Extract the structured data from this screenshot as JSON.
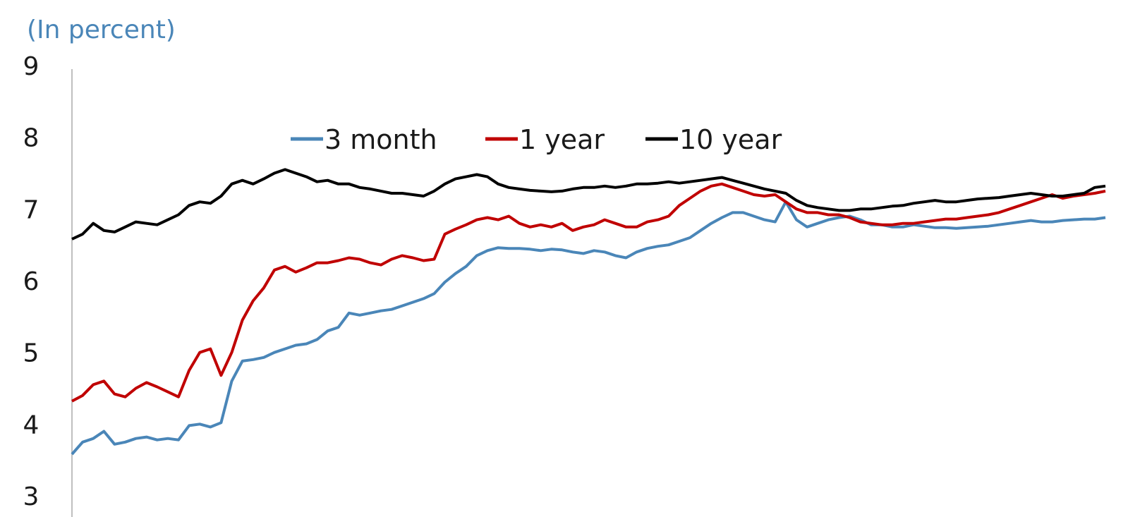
{
  "chart_data": {
    "type": "line",
    "unit_label": "(In percent)",
    "ylim": [
      3,
      9
    ],
    "y_ticks": [
      "9",
      "8",
      "7",
      "6",
      "5",
      "4",
      "3"
    ],
    "grid": false,
    "legend_position": "top-center",
    "x": [
      0,
      1,
      2,
      3,
      4,
      5,
      6,
      7,
      8,
      9,
      10,
      11,
      12,
      13,
      14,
      15,
      16,
      17,
      18,
      19,
      20,
      21,
      22,
      23,
      24,
      25,
      26,
      27,
      28,
      29,
      30,
      31,
      32,
      33,
      34,
      35,
      36,
      37,
      38,
      39,
      40,
      41,
      42,
      43,
      44,
      45,
      46,
      47,
      48,
      49,
      50,
      51,
      52,
      53,
      54,
      55,
      56,
      57,
      58,
      59,
      60,
      61,
      62,
      63,
      64,
      65,
      66,
      67,
      68,
      69,
      70,
      71,
      72,
      73,
      74,
      75,
      76,
      77,
      78,
      79,
      80,
      81,
      82,
      83,
      84,
      85,
      86,
      87,
      88,
      89,
      90,
      91,
      92,
      93,
      94,
      95,
      96,
      97
    ],
    "series": [
      {
        "name": "3 month",
        "color": "#4a86b8",
        "values": [
          3.58,
          3.75,
          3.8,
          3.9,
          3.72,
          3.75,
          3.8,
          3.82,
          3.78,
          3.8,
          3.78,
          3.98,
          4.0,
          3.96,
          4.02,
          4.6,
          4.88,
          4.9,
          4.93,
          5.0,
          5.05,
          5.1,
          5.12,
          5.18,
          5.3,
          5.35,
          5.55,
          5.52,
          5.55,
          5.58,
          5.6,
          5.65,
          5.7,
          5.75,
          5.82,
          5.98,
          6.1,
          6.2,
          6.35,
          6.42,
          6.46,
          6.45,
          6.45,
          6.44,
          6.42,
          6.44,
          6.43,
          6.4,
          6.38,
          6.42,
          6.4,
          6.35,
          6.32,
          6.4,
          6.45,
          6.48,
          6.5,
          6.55,
          6.6,
          6.7,
          6.8,
          6.88,
          6.95,
          6.95,
          6.9,
          6.85,
          6.82,
          7.1,
          6.85,
          6.75,
          6.8,
          6.85,
          6.88,
          6.9,
          6.85,
          6.78,
          6.78,
          6.75,
          6.75,
          6.78,
          6.76,
          6.74,
          6.74,
          6.73,
          6.74,
          6.75,
          6.76,
          6.78,
          6.8,
          6.82,
          6.84,
          6.82,
          6.82,
          6.84,
          6.85,
          6.86,
          6.86,
          6.88
        ]
      },
      {
        "name": "1 year",
        "color": "#c00000",
        "values": [
          4.32,
          4.4,
          4.55,
          4.6,
          4.42,
          4.38,
          4.5,
          4.58,
          4.52,
          4.45,
          4.38,
          4.75,
          5.0,
          5.05,
          4.68,
          5.0,
          5.45,
          5.72,
          5.9,
          6.15,
          6.2,
          6.12,
          6.18,
          6.25,
          6.25,
          6.28,
          6.32,
          6.3,
          6.25,
          6.22,
          6.3,
          6.35,
          6.32,
          6.28,
          6.3,
          6.65,
          6.72,
          6.78,
          6.85,
          6.88,
          6.85,
          6.9,
          6.8,
          6.75,
          6.78,
          6.75,
          6.8,
          6.7,
          6.75,
          6.78,
          6.85,
          6.8,
          6.75,
          6.75,
          6.82,
          6.85,
          6.9,
          7.05,
          7.15,
          7.25,
          7.32,
          7.35,
          7.3,
          7.25,
          7.2,
          7.18,
          7.2,
          7.1,
          7.0,
          6.95,
          6.95,
          6.92,
          6.92,
          6.88,
          6.82,
          6.8,
          6.78,
          6.78,
          6.8,
          6.8,
          6.82,
          6.84,
          6.86,
          6.86,
          6.88,
          6.9,
          6.92,
          6.95,
          7.0,
          7.05,
          7.1,
          7.15,
          7.2,
          7.15,
          7.18,
          7.2,
          7.22,
          7.25
        ]
      },
      {
        "name": "10 year",
        "color": "#000000",
        "values": [
          6.58,
          6.65,
          6.8,
          6.7,
          6.68,
          6.75,
          6.82,
          6.8,
          6.78,
          6.85,
          6.92,
          7.05,
          7.1,
          7.08,
          7.18,
          7.35,
          7.4,
          7.35,
          7.42,
          7.5,
          7.55,
          7.5,
          7.45,
          7.38,
          7.4,
          7.35,
          7.35,
          7.3,
          7.28,
          7.25,
          7.22,
          7.22,
          7.2,
          7.18,
          7.25,
          7.35,
          7.42,
          7.45,
          7.48,
          7.45,
          7.35,
          7.3,
          7.28,
          7.26,
          7.25,
          7.24,
          7.25,
          7.28,
          7.3,
          7.3,
          7.32,
          7.3,
          7.32,
          7.35,
          7.35,
          7.36,
          7.38,
          7.36,
          7.38,
          7.4,
          7.42,
          7.44,
          7.4,
          7.36,
          7.32,
          7.28,
          7.25,
          7.22,
          7.12,
          7.05,
          7.02,
          7.0,
          6.98,
          6.98,
          7.0,
          7.0,
          7.02,
          7.04,
          7.05,
          7.08,
          7.1,
          7.12,
          7.1,
          7.1,
          7.12,
          7.14,
          7.15,
          7.16,
          7.18,
          7.2,
          7.22,
          7.2,
          7.18,
          7.18,
          7.2,
          7.22,
          7.3,
          7.32
        ]
      }
    ]
  }
}
